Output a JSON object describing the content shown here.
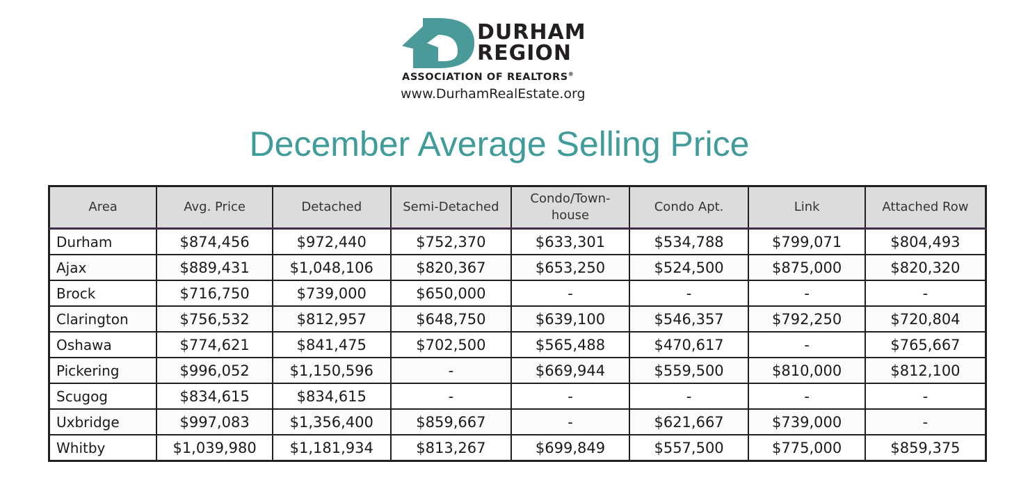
{
  "logo": {
    "line1": "DURHAM",
    "line2": "REGION",
    "association": "ASSOCIATION OF REALTORS",
    "registered": "®",
    "url": "www.DurhamRealEstate.org",
    "brand_color": "#4a9a99"
  },
  "title": "December Average Selling Price",
  "table": {
    "headers": [
      "Area",
      "Avg. Price",
      "Detached",
      "Semi-Detached",
      "Condo/Town-house",
      "Condo Apt.",
      "Link",
      "Attached Row"
    ],
    "rows": [
      [
        "Durham",
        "$874,456",
        "$972,440",
        "$752,370",
        "$633,301",
        "$534,788",
        "$799,071",
        "$804,493"
      ],
      [
        "Ajax",
        "$889,431",
        "$1,048,106",
        "$820,367",
        "$653,250",
        "$524,500",
        "$875,000",
        "$820,320"
      ],
      [
        "Brock",
        "$716,750",
        "$739,000",
        "$650,000",
        "-",
        "-",
        "-",
        "-"
      ],
      [
        "Clarington",
        "$756,532",
        "$812,957",
        "$648,750",
        "$639,100",
        "$546,357",
        "$792,250",
        "$720,804"
      ],
      [
        "Oshawa",
        "$774,621",
        "$841,475",
        "$702,500",
        "$565,488",
        "$470,617",
        "-",
        "$765,667"
      ],
      [
        "Pickering",
        "$996,052",
        "$1,150,596",
        "-",
        "$669,944",
        "$559,500",
        "$810,000",
        "$812,100"
      ],
      [
        "Scugog",
        "$834,615",
        "$834,615",
        "-",
        "-",
        "-",
        "-",
        "-"
      ],
      [
        "Uxbridge",
        "$997,083",
        "$1,356,400",
        "$859,667",
        "-",
        "$621,667",
        "$739,000",
        "-"
      ],
      [
        "Whitby",
        "$1,039,980",
        "$1,181,934",
        "$813,267",
        "$699,849",
        "$557,500",
        "$775,000",
        "$859,375"
      ]
    ]
  },
  "colors": {
    "title": "#3f9c99",
    "header_bg": "#dcdcdc",
    "border": "#231f20"
  }
}
